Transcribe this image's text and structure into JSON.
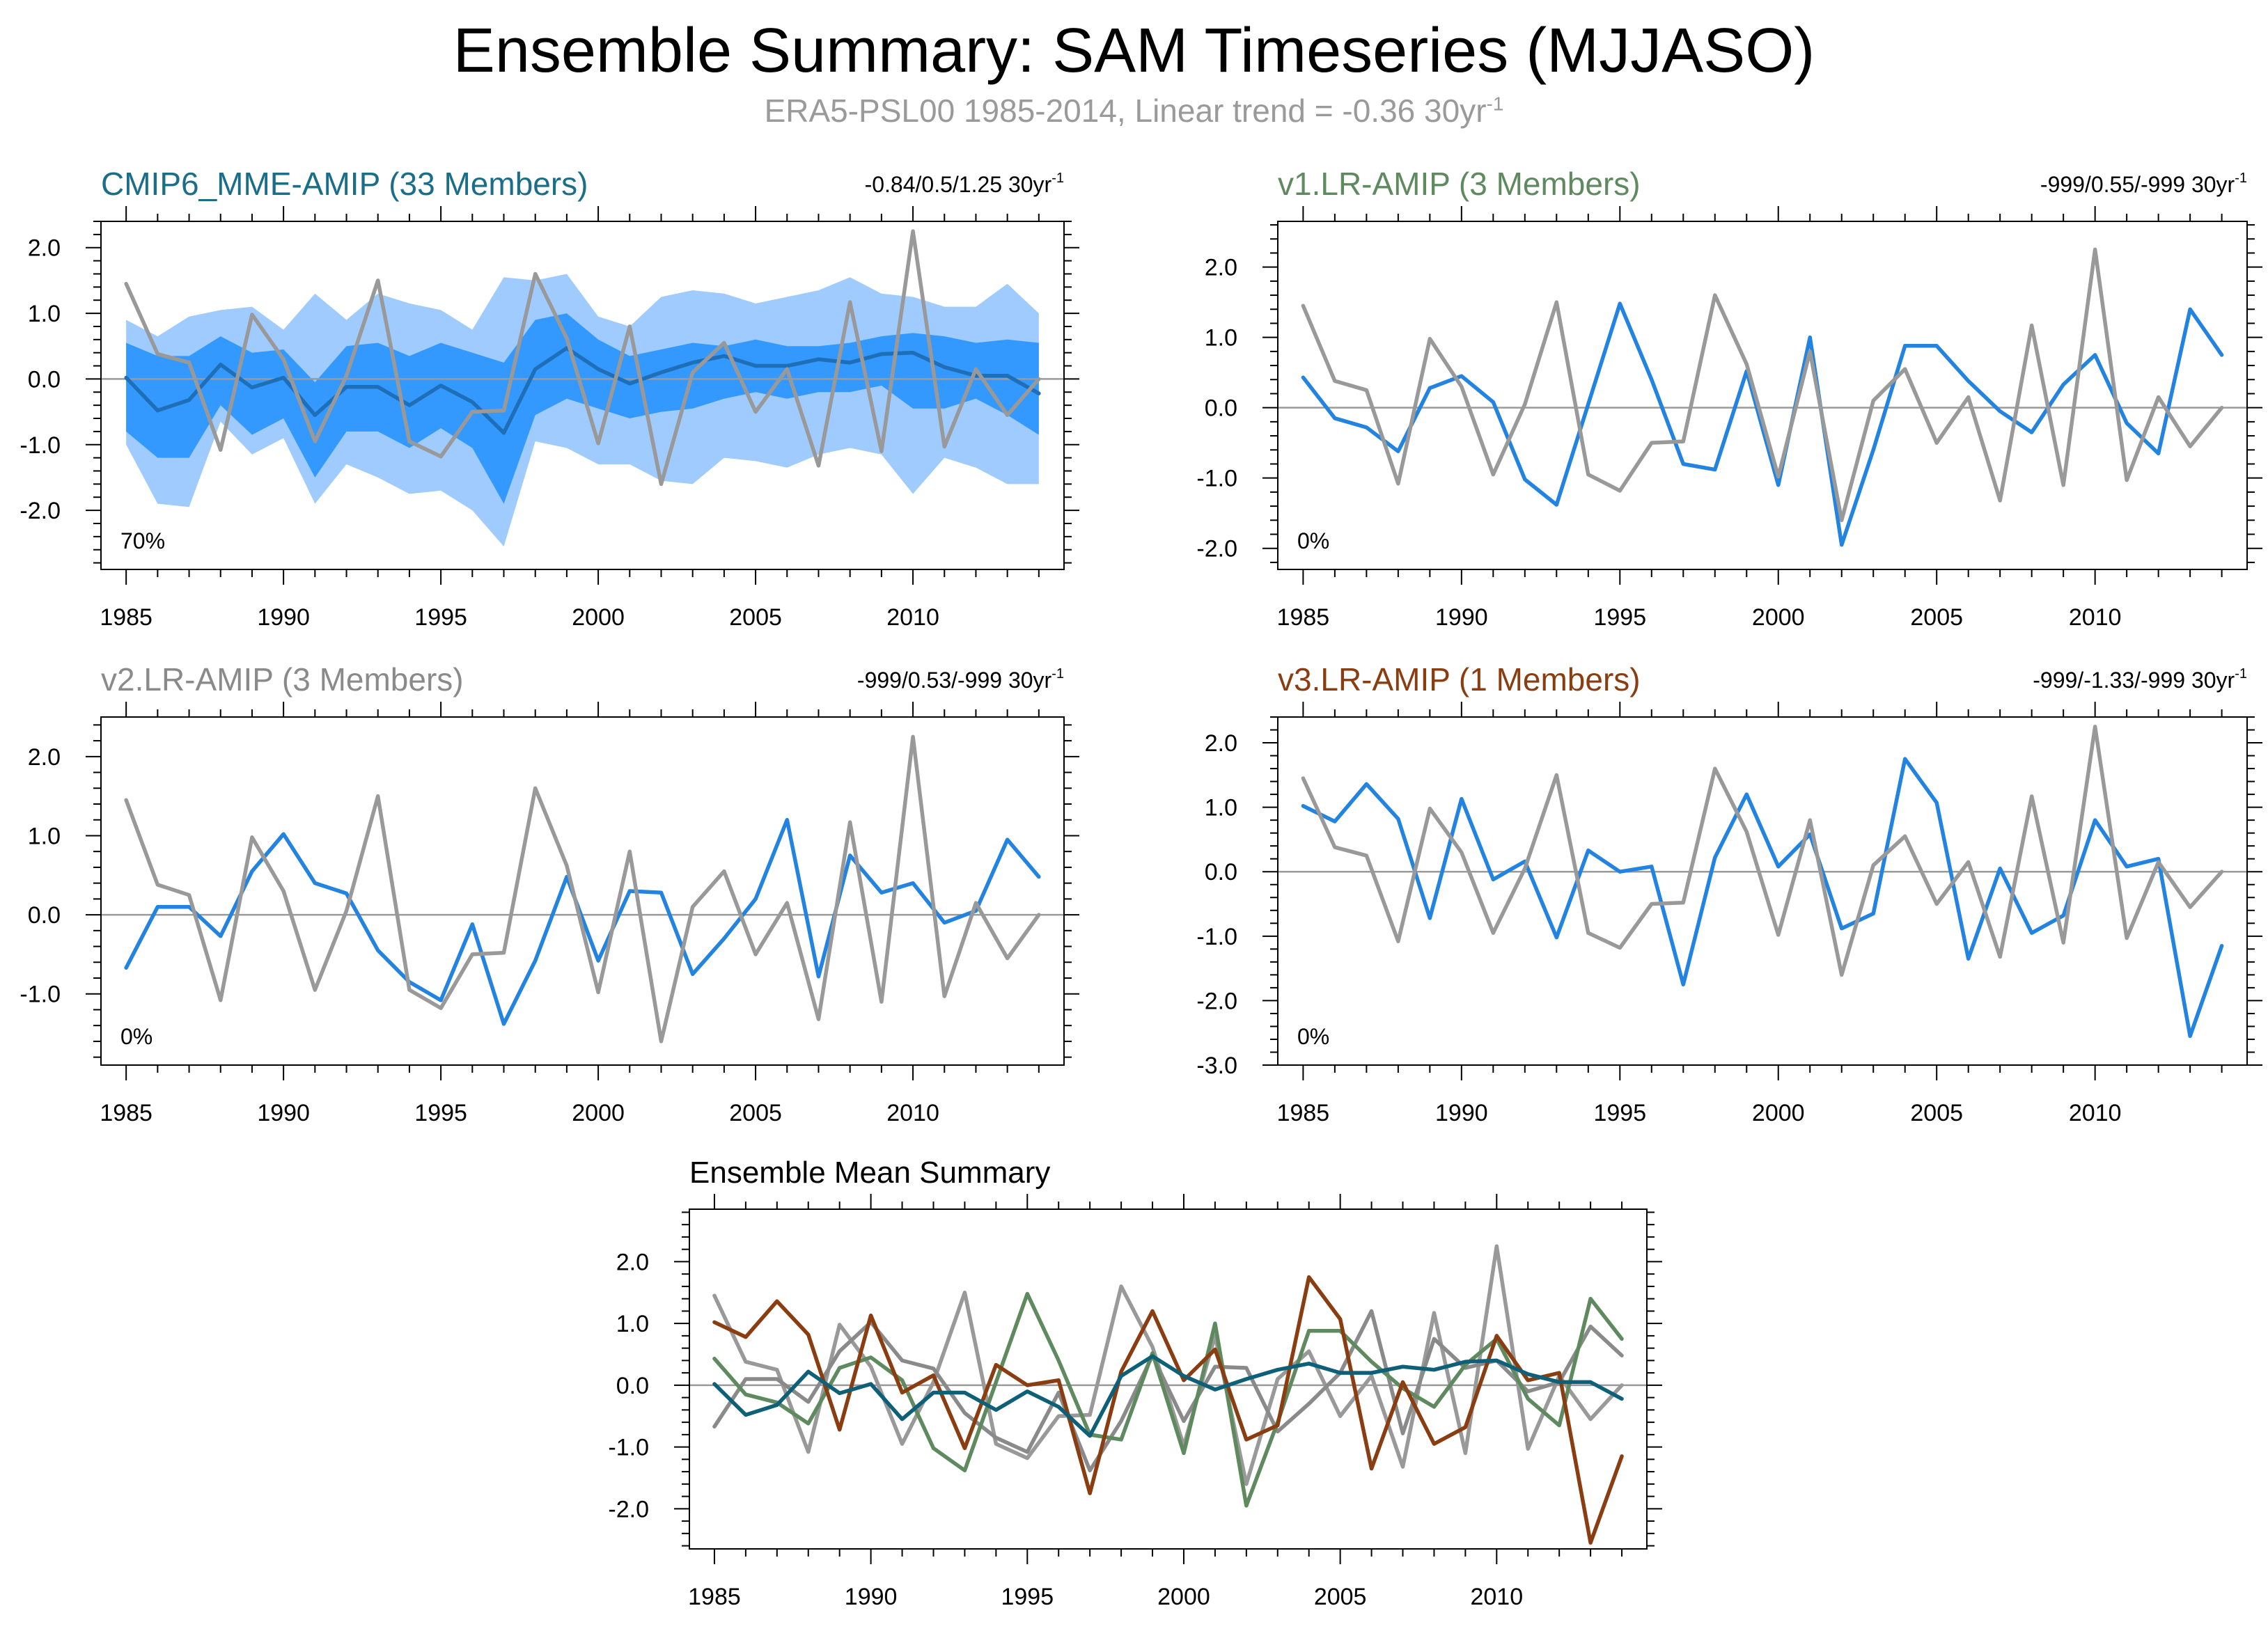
{
  "title": "Ensemble Summary: SAM Timeseries (MJJASO)",
  "subtitle": {
    "text": "ERA5-PSL00 1985-2014, Linear trend = -0.36 30yr",
    "sup": "-1",
    "color": "#9a9a9a"
  },
  "colors": {
    "obs": "#999999",
    "model_line": "#2283e0",
    "mme_mean": "#1f6fb8",
    "mme_band_inner": "#3399ff",
    "mme_band_outer": "#9fcbff",
    "cmip6_title": "#1a6e8a",
    "v1_title": "#5f8a5f",
    "v2_title": "#8a8a8a",
    "v3_title": "#8a3d10",
    "summary_cmip6": "#0e5f78",
    "summary_v1": "#5f8a5f",
    "summary_v2": "#8a8a8a",
    "summary_v3": "#8a3d10"
  },
  "chart_data": [
    {
      "id": "cmip6",
      "type": "line",
      "title": "CMIP6_MME-AMIP (33 Members)",
      "stats": "-0.84/0.5/1.25 30yr",
      "stats_sup": "-1",
      "corner_label": "70%",
      "x": [
        1985,
        1986,
        1987,
        1988,
        1989,
        1990,
        1991,
        1992,
        1993,
        1994,
        1995,
        1996,
        1997,
        1998,
        1999,
        2000,
        2001,
        2002,
        2003,
        2004,
        2005,
        2006,
        2007,
        2008,
        2009,
        2010,
        2011,
        2012,
        2013,
        2014
      ],
      "ylim": [
        -2.9,
        2.4
      ],
      "yticks": [
        2.0,
        1.0,
        0.0,
        -1.0,
        -2.0
      ],
      "ytick_labels": [
        "2.0",
        "1.0",
        "0.0",
        "-1.0",
        "-2.0"
      ],
      "xticks": [
        1985,
        1990,
        1995,
        2000,
        2005,
        2010
      ],
      "bands": {
        "outer_upper": [
          0.9,
          0.65,
          0.95,
          1.05,
          1.1,
          0.75,
          1.3,
          0.9,
          1.3,
          1.15,
          1.05,
          0.75,
          1.55,
          1.5,
          1.6,
          0.95,
          0.8,
          1.25,
          1.35,
          1.3,
          1.15,
          1.25,
          1.35,
          1.55,
          1.3,
          1.25,
          1.1,
          1.1,
          1.45,
          1.0
        ],
        "outer_lower": [
          -1.0,
          -1.9,
          -1.95,
          -0.65,
          -1.15,
          -0.9,
          -1.9,
          -1.3,
          -1.5,
          -1.75,
          -1.7,
          -2.0,
          -2.55,
          -0.95,
          -1.05,
          -1.3,
          -1.3,
          -1.55,
          -1.6,
          -1.2,
          -1.25,
          -1.35,
          -1.15,
          -1.05,
          -1.15,
          -1.75,
          -1.2,
          -1.35,
          -1.6,
          -1.6
        ],
        "inner_upper": [
          0.55,
          0.35,
          0.35,
          0.65,
          0.4,
          0.45,
          -0.05,
          0.5,
          0.55,
          0.35,
          0.55,
          0.4,
          0.25,
          0.9,
          1.0,
          0.6,
          0.35,
          0.45,
          0.55,
          0.5,
          0.6,
          0.5,
          0.5,
          0.55,
          0.65,
          0.7,
          0.65,
          0.55,
          0.6,
          0.55
        ],
        "inner_lower": [
          -0.8,
          -1.2,
          -1.2,
          -0.4,
          -0.85,
          -0.6,
          -1.5,
          -0.8,
          -0.8,
          -1.05,
          -0.75,
          -1.05,
          -1.9,
          -0.55,
          -0.3,
          -0.45,
          -0.6,
          -0.5,
          -0.45,
          -0.3,
          -0.2,
          -0.3,
          -0.2,
          -0.2,
          -0.1,
          -0.45,
          -0.45,
          -0.3,
          -0.55,
          -0.85
        ]
      },
      "series": [
        {
          "name": "CMIP6_MME-AMIP (33 Members)",
          "role": "model",
          "values": [
            0.02,
            -0.48,
            -0.32,
            0.22,
            -0.13,
            0.02,
            -0.55,
            -0.12,
            -0.12,
            -0.4,
            -0.1,
            -0.35,
            -0.82,
            0.15,
            0.47,
            0.15,
            -0.07,
            0.1,
            0.25,
            0.35,
            0.2,
            0.2,
            0.3,
            0.25,
            0.38,
            0.4,
            0.18,
            0.05,
            0.05,
            -0.22
          ]
        },
        {
          "name": "ERA5-PSL00",
          "role": "obs",
          "values": [
            1.45,
            0.38,
            0.25,
            -1.08,
            0.98,
            0.3,
            -0.95,
            0.05,
            1.5,
            -0.95,
            -1.18,
            -0.5,
            -0.48,
            1.6,
            0.62,
            -0.98,
            0.8,
            -1.6,
            0.1,
            0.55,
            -0.5,
            0.15,
            -1.32,
            1.17,
            -1.1,
            2.25,
            -1.03,
            0.15,
            -0.55,
            0.0
          ]
        }
      ]
    },
    {
      "id": "v1",
      "type": "line",
      "title": "v1.LR-AMIP (3 Members)",
      "stats": "-999/0.55/-999 30yr",
      "stats_sup": "-1",
      "corner_label": "0%",
      "x": [
        1985,
        1986,
        1987,
        1988,
        1989,
        1990,
        1991,
        1992,
        1993,
        1994,
        1995,
        1996,
        1997,
        1998,
        1999,
        2000,
        2001,
        2002,
        2003,
        2004,
        2005,
        2006,
        2007,
        2008,
        2009,
        2010,
        2011,
        2012,
        2013,
        2014
      ],
      "ylim": [
        -2.3,
        2.65
      ],
      "yticks": [
        2.0,
        1.0,
        0.0,
        -1.0,
        -2.0
      ],
      "ytick_labels": [
        "2.0",
        "1.0",
        "0.0",
        "-1.0",
        "-2.0"
      ],
      "xticks": [
        1985,
        1990,
        1995,
        2000,
        2005,
        2010
      ],
      "series": [
        {
          "name": "v1.LR-AMIP (3 Members)",
          "role": "model",
          "values": [
            0.43,
            -0.15,
            -0.28,
            -0.62,
            0.28,
            0.45,
            0.08,
            -1.02,
            -1.38,
            0.05,
            1.48,
            0.4,
            -0.8,
            -0.88,
            0.52,
            -1.1,
            1.0,
            -1.95,
            -0.6,
            0.88,
            0.88,
            0.38,
            -0.05,
            -0.35,
            0.33,
            0.75,
            -0.22,
            -0.65,
            1.4,
            0.75
          ]
        },
        {
          "name": "ERA5-PSL00",
          "role": "obs",
          "values": [
            1.45,
            0.38,
            0.25,
            -1.08,
            0.98,
            0.3,
            -0.95,
            0.05,
            1.5,
            -0.95,
            -1.18,
            -0.5,
            -0.48,
            1.6,
            0.62,
            -0.98,
            0.8,
            -1.6,
            0.1,
            0.55,
            -0.5,
            0.15,
            -1.32,
            1.17,
            -1.1,
            2.25,
            -1.03,
            0.15,
            -0.55,
            0.0
          ]
        }
      ]
    },
    {
      "id": "v2",
      "type": "line",
      "title": "v2.LR-AMIP (3 Members)",
      "stats": "-999/0.53/-999 30yr",
      "stats_sup": "-1",
      "corner_label": "0%",
      "x": [
        1985,
        1986,
        1987,
        1988,
        1989,
        1990,
        1991,
        1992,
        1993,
        1994,
        1995,
        1996,
        1997,
        1998,
        1999,
        2000,
        2001,
        2002,
        2003,
        2004,
        2005,
        2006,
        2007,
        2008,
        2009,
        2010,
        2011,
        2012,
        2013,
        2014
      ],
      "ylim": [
        -1.9,
        2.5
      ],
      "yticks": [
        2.0,
        1.0,
        0.0,
        -1.0
      ],
      "ytick_labels": [
        "2.0",
        "1.0",
        "0.0",
        "-1.0"
      ],
      "xticks": [
        1985,
        1990,
        1995,
        2000,
        2005,
        2010
      ],
      "series": [
        {
          "name": "v2.LR-AMIP (3 Members)",
          "role": "model",
          "values": [
            -0.67,
            0.1,
            0.1,
            -0.27,
            0.55,
            1.02,
            0.4,
            0.27,
            -0.45,
            -0.85,
            -1.08,
            -0.12,
            -1.38,
            -0.58,
            0.48,
            -0.58,
            0.3,
            0.28,
            -0.75,
            -0.3,
            0.2,
            1.2,
            -0.78,
            0.75,
            0.28,
            0.4,
            -0.1,
            0.05,
            0.95,
            0.48
          ]
        },
        {
          "name": "ERA5-PSL00",
          "role": "obs",
          "values": [
            1.45,
            0.38,
            0.25,
            -1.08,
            0.98,
            0.3,
            -0.95,
            0.05,
            1.5,
            -0.95,
            -1.18,
            -0.5,
            -0.48,
            1.6,
            0.62,
            -0.98,
            0.8,
            -1.6,
            0.1,
            0.55,
            -0.5,
            0.15,
            -1.32,
            1.17,
            -1.1,
            2.25,
            -1.03,
            0.15,
            -0.55,
            0.0
          ]
        }
      ]
    },
    {
      "id": "v3",
      "type": "line",
      "title": "v3.LR-AMIP (1 Members)",
      "stats": "-999/-1.33/-999 30yr",
      "stats_sup": "-1",
      "corner_label": "0%",
      "x": [
        1985,
        1986,
        1987,
        1988,
        1989,
        1990,
        1991,
        1992,
        1993,
        1994,
        1995,
        1996,
        1997,
        1998,
        1999,
        2000,
        2001,
        2002,
        2003,
        2004,
        2005,
        2006,
        2007,
        2008,
        2009,
        2010,
        2011,
        2012,
        2013,
        2014
      ],
      "ylim": [
        -3.0,
        2.4
      ],
      "yticks": [
        2.0,
        1.0,
        0.0,
        -1.0,
        -2.0,
        -3.0
      ],
      "ytick_labels": [
        "2.0",
        "1.0",
        "0.0",
        "-1.0",
        "-2.0",
        "-3.0"
      ],
      "xticks": [
        1985,
        1990,
        1995,
        2000,
        2005,
        2010
      ],
      "series": [
        {
          "name": "v3.LR-AMIP (1 Members)",
          "role": "model",
          "values": [
            1.02,
            0.78,
            1.36,
            0.82,
            -0.72,
            1.13,
            -0.12,
            0.16,
            -1.02,
            0.33,
            0.0,
            0.08,
            -1.75,
            0.22,
            1.2,
            0.08,
            0.58,
            -0.88,
            -0.65,
            1.75,
            1.07,
            -1.35,
            0.05,
            -0.95,
            -0.68,
            0.8,
            0.08,
            0.2,
            -2.55,
            -1.15
          ]
        },
        {
          "name": "ERA5-PSL00",
          "role": "obs",
          "values": [
            1.45,
            0.38,
            0.25,
            -1.08,
            0.98,
            0.3,
            -0.95,
            0.05,
            1.5,
            -0.95,
            -1.18,
            -0.5,
            -0.48,
            1.6,
            0.62,
            -0.98,
            0.8,
            -1.6,
            0.1,
            0.55,
            -0.5,
            0.15,
            -1.32,
            1.17,
            -1.1,
            2.25,
            -1.03,
            0.15,
            -0.55,
            0.0
          ]
        }
      ]
    },
    {
      "id": "summary",
      "type": "line",
      "title": "Ensemble Mean Summary",
      "x": [
        1985,
        1986,
        1987,
        1988,
        1989,
        1990,
        1991,
        1992,
        1993,
        1994,
        1995,
        1996,
        1997,
        1998,
        1999,
        2000,
        2001,
        2002,
        2003,
        2004,
        2005,
        2006,
        2007,
        2008,
        2009,
        2010,
        2011,
        2012,
        2013,
        2014
      ],
      "ylim": [
        -2.65,
        2.85
      ],
      "yticks": [
        2.0,
        1.0,
        0.0,
        -1.0,
        -2.0
      ],
      "ytick_labels": [
        "2.0",
        "1.0",
        "0.0",
        "-1.0",
        "-2.0"
      ],
      "xticks": [
        1985,
        1990,
        1995,
        2000,
        2005,
        2010
      ],
      "series": [
        {
          "name": "ERA5-PSL00",
          "role": "obs",
          "values": [
            1.45,
            0.38,
            0.25,
            -1.08,
            0.98,
            0.3,
            -0.95,
            0.05,
            1.5,
            -0.95,
            -1.18,
            -0.5,
            -0.48,
            1.6,
            0.62,
            -0.98,
            0.8,
            -1.6,
            0.1,
            0.55,
            -0.5,
            0.15,
            -1.32,
            1.17,
            -1.1,
            2.25,
            -1.03,
            0.15,
            -0.55,
            0.0
          ]
        },
        {
          "name": "v2.LR-AMIP (3 Members)",
          "role": "v2",
          "values": [
            -0.67,
            0.1,
            0.1,
            -0.27,
            0.55,
            1.02,
            0.4,
            0.27,
            -0.45,
            -0.85,
            -1.08,
            -0.12,
            -1.38,
            -0.58,
            0.48,
            -0.58,
            0.3,
            0.28,
            -0.75,
            -0.3,
            0.2,
            1.2,
            -0.78,
            0.75,
            0.28,
            0.4,
            -0.1,
            0.05,
            0.95,
            0.48
          ]
        },
        {
          "name": "v1.LR-AMIP (3 Members)",
          "role": "v1",
          "values": [
            0.43,
            -0.15,
            -0.28,
            -0.62,
            0.28,
            0.45,
            0.08,
            -1.02,
            -1.38,
            0.05,
            1.48,
            0.4,
            -0.8,
            -0.88,
            0.52,
            -1.1,
            1.0,
            -1.95,
            -0.6,
            0.88,
            0.88,
            0.38,
            -0.05,
            -0.35,
            0.33,
            0.75,
            -0.22,
            -0.65,
            1.4,
            0.75
          ]
        },
        {
          "name": "v3.LR-AMIP (1 Members)",
          "role": "v3",
          "values": [
            1.02,
            0.78,
            1.36,
            0.82,
            -0.72,
            1.13,
            -0.12,
            0.16,
            -1.02,
            0.33,
            0.0,
            0.08,
            -1.75,
            0.22,
            1.2,
            0.08,
            0.58,
            -0.88,
            -0.65,
            1.75,
            1.07,
            -1.35,
            0.05,
            -0.95,
            -0.68,
            0.8,
            0.08,
            0.2,
            -2.55,
            -1.15
          ]
        },
        {
          "name": "CMIP6_MME-AMIP (33 Members)",
          "role": "cmip6",
          "values": [
            0.02,
            -0.48,
            -0.32,
            0.22,
            -0.13,
            0.02,
            -0.55,
            -0.12,
            -0.12,
            -0.4,
            -0.1,
            -0.35,
            -0.82,
            0.15,
            0.47,
            0.15,
            -0.07,
            0.1,
            0.25,
            0.35,
            0.2,
            0.2,
            0.3,
            0.25,
            0.38,
            0.4,
            0.18,
            0.05,
            0.05,
            -0.22
          ]
        }
      ]
    }
  ]
}
